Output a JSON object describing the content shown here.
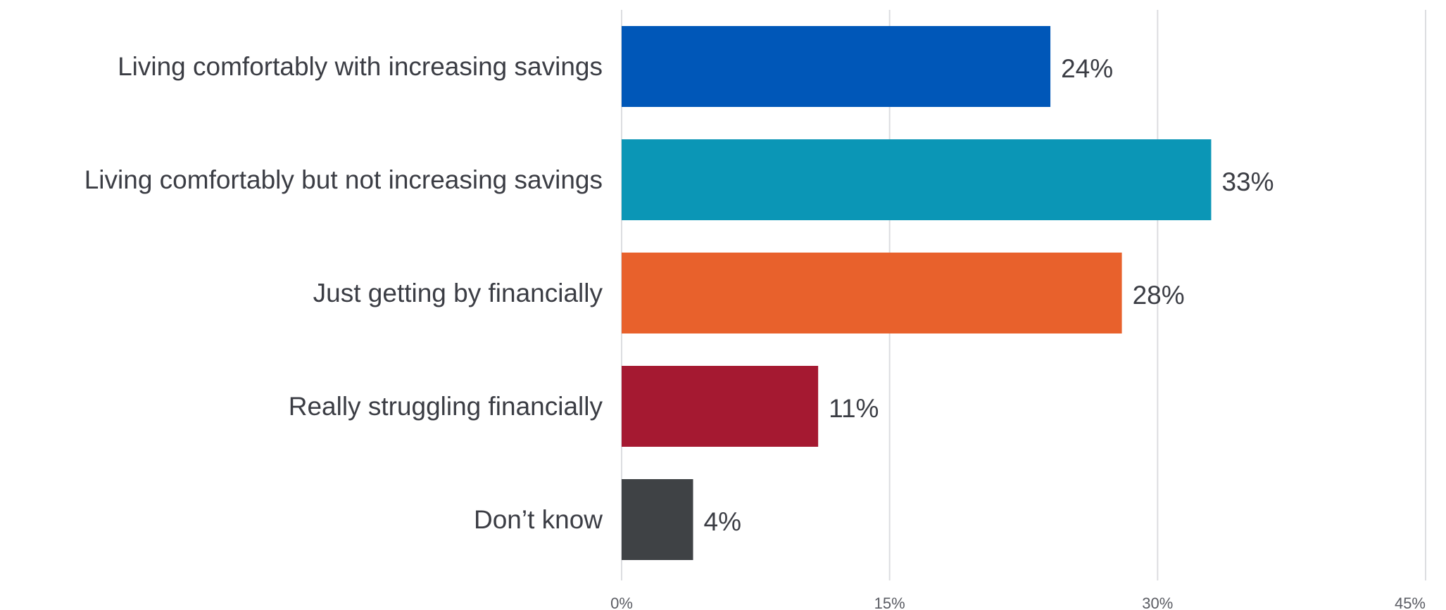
{
  "chart_data": {
    "type": "bar",
    "orientation": "horizontal",
    "categories": [
      "Living comfortably with increasing savings",
      "Living comfortably but not increasing savings",
      "Just getting by financially",
      "Really struggling financially",
      "Don’t know"
    ],
    "values": [
      24,
      33,
      28,
      11,
      4
    ],
    "value_labels": [
      "24%",
      "33%",
      "28%",
      "11%",
      "4%"
    ],
    "bar_colors": [
      "#0057b8",
      "#0b96b6",
      "#e8612c",
      "#a51931",
      "#3f4245"
    ],
    "xlim": [
      0,
      45
    ],
    "x_ticks": [
      0,
      15,
      30,
      45
    ],
    "x_tick_labels": [
      "0%",
      "15%",
      "30%",
      "45%"
    ],
    "grid": true,
    "title": "",
    "xlabel": "",
    "ylabel": ""
  }
}
